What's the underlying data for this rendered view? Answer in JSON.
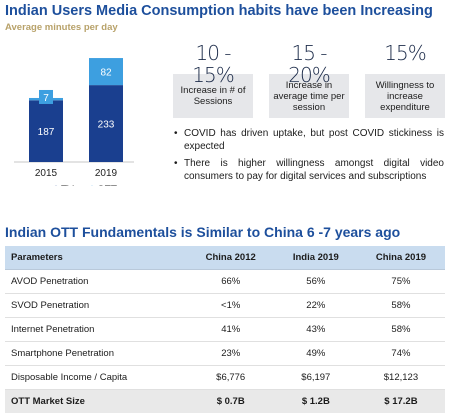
{
  "header": {
    "title": "Indian Users Media Consumption habits have been Increasing",
    "subtitle": "Average minutes per day"
  },
  "chart_data": {
    "type": "bar",
    "stacked": true,
    "categories": [
      "2015",
      "2019"
    ],
    "series": [
      {
        "name": "TV",
        "values": [
          187,
          233
        ],
        "color": "#1a3f8f"
      },
      {
        "name": "OTT",
        "values": [
          7,
          82
        ],
        "color": "#3d9fe0"
      }
    ],
    "legend_position": "bottom",
    "grid": false
  },
  "stats": [
    {
      "value": "10 - 15%",
      "label": "Increase in # of Sessions"
    },
    {
      "value": "15 - 20%",
      "label": "Increase in average time per session"
    },
    {
      "value": "15%",
      "label": "Willingness to increase expenditure"
    }
  ],
  "bullets": [
    "COVID has driven uptake, but post COVID stickiness is expected",
    "There is higher willingness amongst digital video consumers to pay for digital services and subscriptions"
  ],
  "section2": {
    "title": "Indian OTT Fundamentals is Similar to China 6 -7 years ago"
  },
  "table": {
    "headers": [
      "Parameters",
      "China 2012",
      "India 2019",
      "China 2019"
    ],
    "rows": [
      [
        "AVOD Penetration",
        "66%",
        "56%",
        "75%"
      ],
      [
        "SVOD Penetration",
        "<1%",
        "22%",
        "58%"
      ],
      [
        "Internet Penetration",
        "41%",
        "43%",
        "58%"
      ],
      [
        "Smartphone Penetration",
        "23%",
        "49%",
        "74%"
      ],
      [
        "Disposable Income / Capita",
        "$6,776",
        "$6,197",
        "$12,123"
      ]
    ],
    "total": [
      "OTT Market Size",
      "$ 0.7B",
      "$ 1.2B",
      "$ 17.2B"
    ]
  }
}
